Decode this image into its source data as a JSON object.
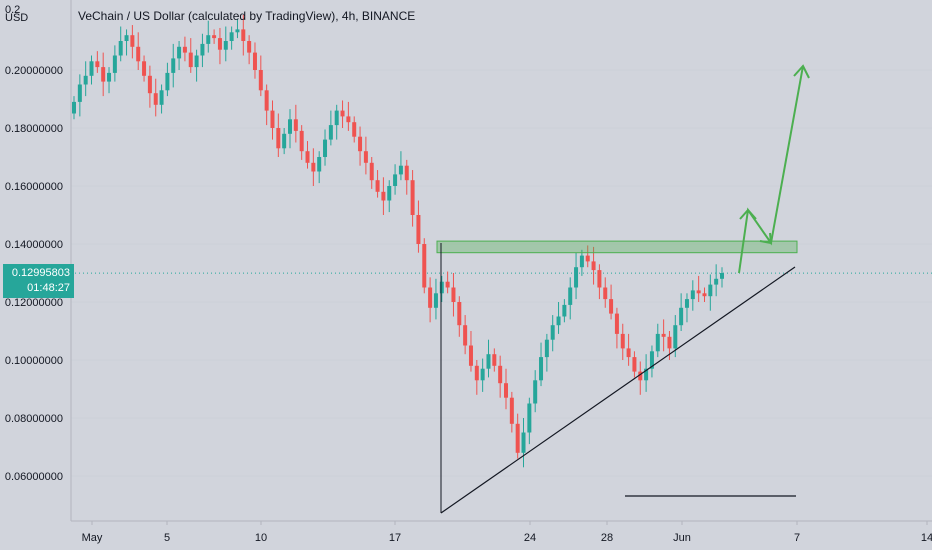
{
  "chart_title": "VeChain / US Dollar (calculated by TradingView), 4h, BINANCE",
  "currency_label": "USD",
  "current_price": "0.12995803",
  "countdown": "01:48:27",
  "colors": {
    "background": "#d1d4dc",
    "up": "#26a69a",
    "down": "#ef5350",
    "annotation": "#4caf50",
    "trendline": "#131722"
  },
  "chart_data": {
    "type": "candlestick",
    "title": "VeChain / US Dollar (calculated by TradingView), 4h, BINANCE",
    "ylabel": "USD",
    "ylim": [
      0.045,
      0.21
    ],
    "y_ticks": [
      "0.06000000",
      "0.08000000",
      "0.10000000",
      "0.12000000",
      "0.14000000",
      "0.16000000",
      "0.18000000",
      "0.20000000"
    ],
    "y_tick_values": [
      0.06,
      0.08,
      0.1,
      0.12,
      0.14,
      0.16,
      0.18,
      0.2
    ],
    "y_tick_top_label": "0.2",
    "x_tick_labels": [
      "May",
      "5",
      "10",
      "17",
      "24",
      "28",
      "Jun",
      "7",
      "14"
    ],
    "current_price": 0.12995803,
    "closes": [
      0.189,
      0.195,
      0.198,
      0.203,
      0.201,
      0.196,
      0.199,
      0.205,
      0.21,
      0.212,
      0.208,
      0.203,
      0.198,
      0.192,
      0.188,
      0.193,
      0.199,
      0.204,
      0.208,
      0.206,
      0.201,
      0.205,
      0.209,
      0.212,
      0.211,
      0.207,
      0.21,
      0.213,
      0.214,
      0.21,
      0.206,
      0.2,
      0.193,
      0.186,
      0.18,
      0.173,
      0.178,
      0.183,
      0.179,
      0.172,
      0.168,
      0.165,
      0.17,
      0.176,
      0.181,
      0.186,
      0.184,
      0.182,
      0.177,
      0.172,
      0.168,
      0.162,
      0.158,
      0.155,
      0.16,
      0.164,
      0.167,
      0.162,
      0.15,
      0.14,
      0.125,
      0.118,
      0.123,
      0.127,
      0.125,
      0.12,
      0.112,
      0.105,
      0.098,
      0.093,
      0.097,
      0.102,
      0.098,
      0.092,
      0.087,
      0.078,
      0.068,
      0.075,
      0.085,
      0.093,
      0.101,
      0.107,
      0.112,
      0.115,
      0.119,
      0.125,
      0.132,
      0.136,
      0.134,
      0.131,
      0.125,
      0.121,
      0.116,
      0.109,
      0.104,
      0.101,
      0.096,
      0.093,
      0.097,
      0.103,
      0.109,
      0.108,
      0.104,
      0.112,
      0.118,
      0.121,
      0.124,
      0.123,
      0.122,
      0.126,
      0.128,
      0.13
    ],
    "annotations": {
      "resistance_zone": [
        0.137,
        0.141
      ],
      "ascending_support_line": "trendline from May 19 low to Jun 7",
      "horizontal_line": "short level near 0.052",
      "projected_path": "green arrow up to 0.15, back to 0.139, then up to 0.20"
    }
  }
}
